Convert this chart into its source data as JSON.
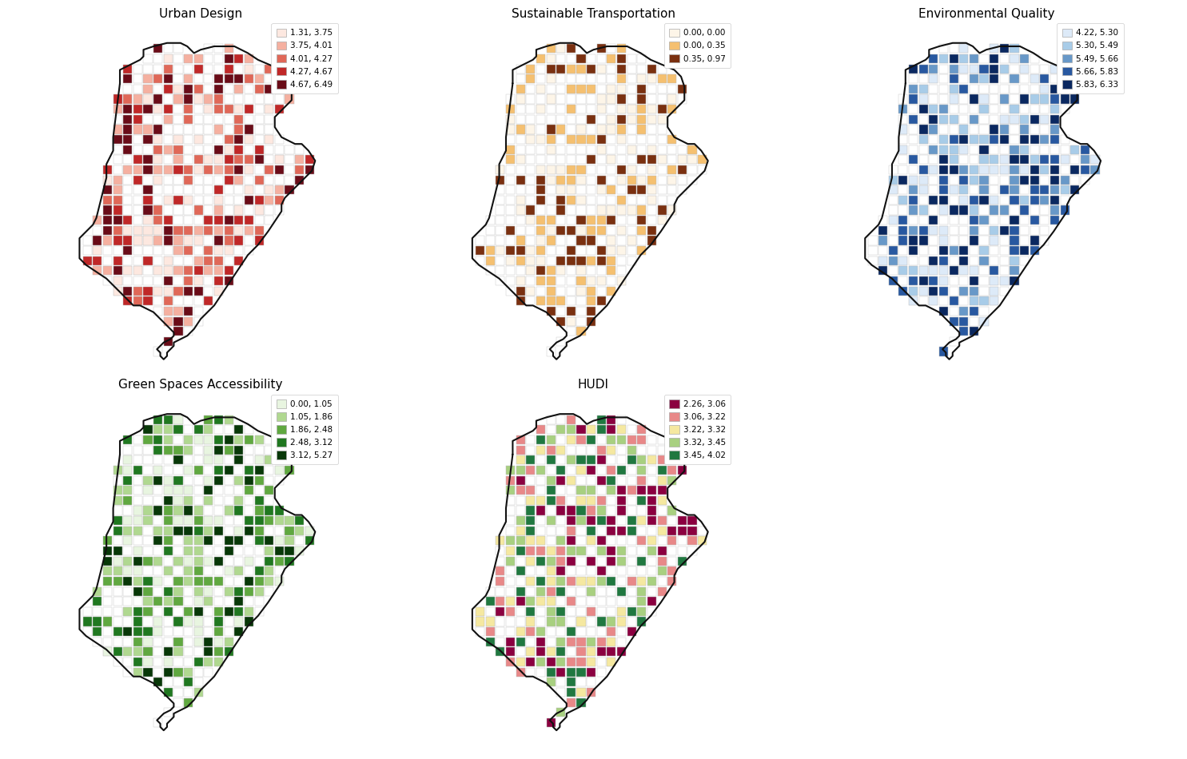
{
  "panels": [
    {
      "title": "Urban Design",
      "legend_labels": [
        "1.31, 3.75",
        "3.75, 4.01",
        "4.01, 4.27",
        "4.27, 4.67",
        "4.67, 6.49"
      ],
      "colors": [
        "#fde8e0",
        "#f5b0a0",
        "#e06858",
        "#c02828",
        "#6a0c18"
      ],
      "n_bins": 5,
      "fill_prob": 0.62
    },
    {
      "title": "Sustainable Transportation",
      "legend_labels": [
        "0.00, 0.00",
        "0.00, 0.35",
        "0.35, 0.97"
      ],
      "colors": [
        "#fdf5e8",
        "#f5c070",
        "#7a3010"
      ],
      "n_bins": 3,
      "fill_prob": 0.55
    },
    {
      "title": "Environmental Quality",
      "legend_labels": [
        "4.22, 5.30",
        "5.30, 5.49",
        "5.49, 5.66",
        "5.66, 5.83",
        "5.83, 6.33"
      ],
      "colors": [
        "#ddeaf8",
        "#a8cce8",
        "#6898c8",
        "#2858a0",
        "#0a2860"
      ],
      "n_bins": 5,
      "fill_prob": 0.6
    },
    {
      "title": "Green Spaces Accessibility",
      "legend_labels": [
        "0.00, 1.05",
        "1.05, 1.86",
        "1.86, 2.48",
        "2.48, 3.12",
        "3.12, 5.27"
      ],
      "colors": [
        "#e8f5e0",
        "#b0d890",
        "#60a840",
        "#207820",
        "#083808"
      ],
      "n_bins": 5,
      "fill_prob": 0.62
    },
    {
      "title": "HUDI",
      "legend_labels": [
        "2.26, 3.06",
        "3.06, 3.22",
        "3.22, 3.32",
        "3.32, 3.45",
        "3.45, 4.02"
      ],
      "colors": [
        "#8b0040",
        "#e88888",
        "#f5e8a0",
        "#a8d080",
        "#207840"
      ],
      "n_bins": 5,
      "fill_prob": 0.65
    }
  ],
  "fig_bg": "#ffffff",
  "boundary_color": "#111111",
  "boundary_lw": 1.5,
  "cell_edge_color": "#bbbbbb",
  "cell_edge_lw": 0.35,
  "empty_cell_edge_color": "#cccccc",
  "empty_cell_edge_lw": 0.35,
  "grid_size": 0.03,
  "legend_fontsize": 7.5,
  "title_fontsize": 11
}
